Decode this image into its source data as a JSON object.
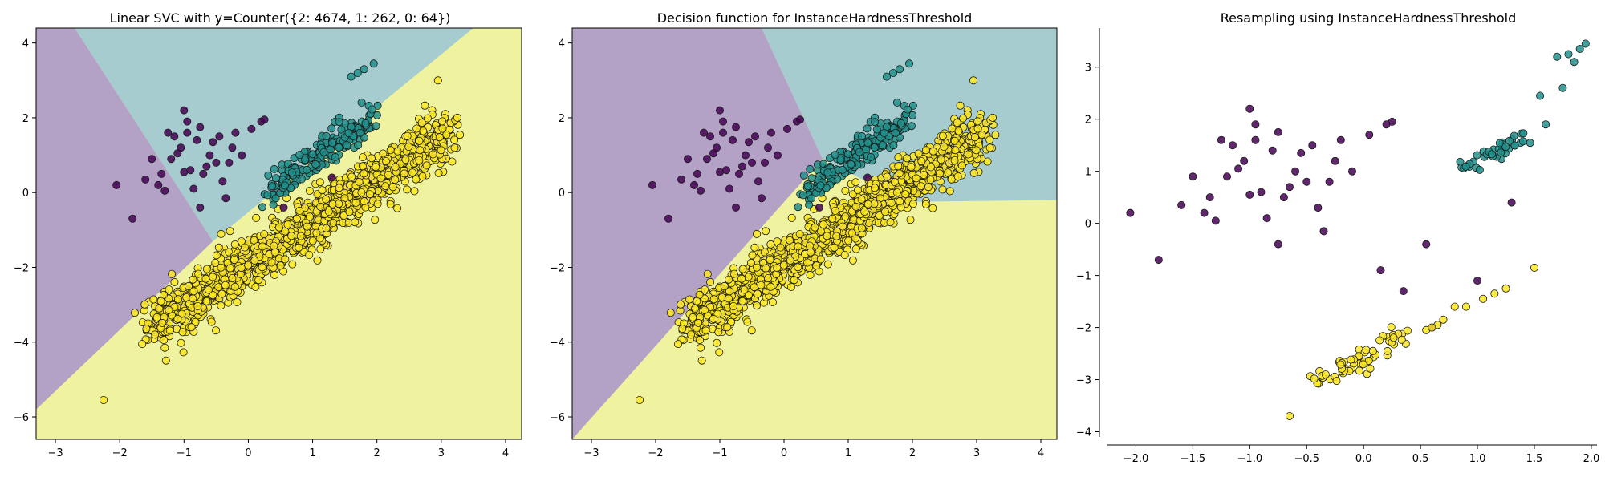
{
  "chart_data": [
    {
      "type": "scatter",
      "title": "Linear SVC with y=Counter({2: 4674, 1: 262, 0: 64})",
      "xlabel": "",
      "ylabel": "",
      "xlim": [
        -3.3,
        4.25
      ],
      "ylim": [
        -6.6,
        4.4
      ],
      "xticks": [
        "−3",
        "−2",
        "−1",
        "0",
        "1",
        "2",
        "3",
        "4"
      ],
      "yticks": [
        "4",
        "2",
        "0",
        "−2",
        "−4",
        "−6"
      ],
      "classes": [
        {
          "label": "0",
          "count": 64,
          "color": "#440154",
          "region_color": "#b3a2c6",
          "cluster_center": [
            -0.7,
            0.6
          ]
        },
        {
          "label": "1",
          "count": 262,
          "color": "#21918c",
          "region_color": "#a7ccd0",
          "cluster_center": [
            1.2,
            1.2
          ]
        },
        {
          "label": "2",
          "count": 4674,
          "color": "#fde725",
          "region_color": "#eff39f",
          "cluster_center": [
            1.0,
            -0.8
          ]
        }
      ],
      "decision_regions": "linear",
      "grid": false
    },
    {
      "type": "scatter",
      "title": "Decision function for InstanceHardnessThreshold",
      "xlabel": "",
      "ylabel": "",
      "xlim": [
        -3.3,
        4.25
      ],
      "ylim": [
        -6.6,
        4.4
      ],
      "xticks": [
        "−3",
        "−2",
        "−1",
        "0",
        "1",
        "2",
        "3",
        "4"
      ],
      "yticks": [
        "4",
        "2",
        "0",
        "−2",
        "−4",
        "−6"
      ],
      "classes": [
        {
          "label": "0",
          "color": "#440154",
          "region_color": "#b3a2c6"
        },
        {
          "label": "1",
          "color": "#21918c",
          "region_color": "#a7ccd0"
        },
        {
          "label": "2",
          "color": "#fde725",
          "region_color": "#eff39f"
        }
      ],
      "decision_regions": "piecewise",
      "grid": false
    },
    {
      "type": "scatter",
      "title": "Resampling using InstanceHardnessThreshold",
      "xlabel": "",
      "ylabel": "",
      "xlim": [
        -2.25,
        2.05
      ],
      "ylim": [
        -4.1,
        3.75
      ],
      "xticks": [
        "−2.0",
        "−1.5",
        "−1.0",
        "−0.5",
        "0.0",
        "0.5",
        "1.0",
        "1.5",
        "2.0"
      ],
      "yticks": [
        "3",
        "2",
        "1",
        "0",
        "−1",
        "−2",
        "−3",
        "−4"
      ],
      "classes": [
        {
          "label": "0",
          "color": "#440154"
        },
        {
          "label": "1",
          "color": "#21918c"
        },
        {
          "label": "2",
          "color": "#fde725"
        }
      ],
      "spines": "left-bottom",
      "grid": false
    }
  ]
}
